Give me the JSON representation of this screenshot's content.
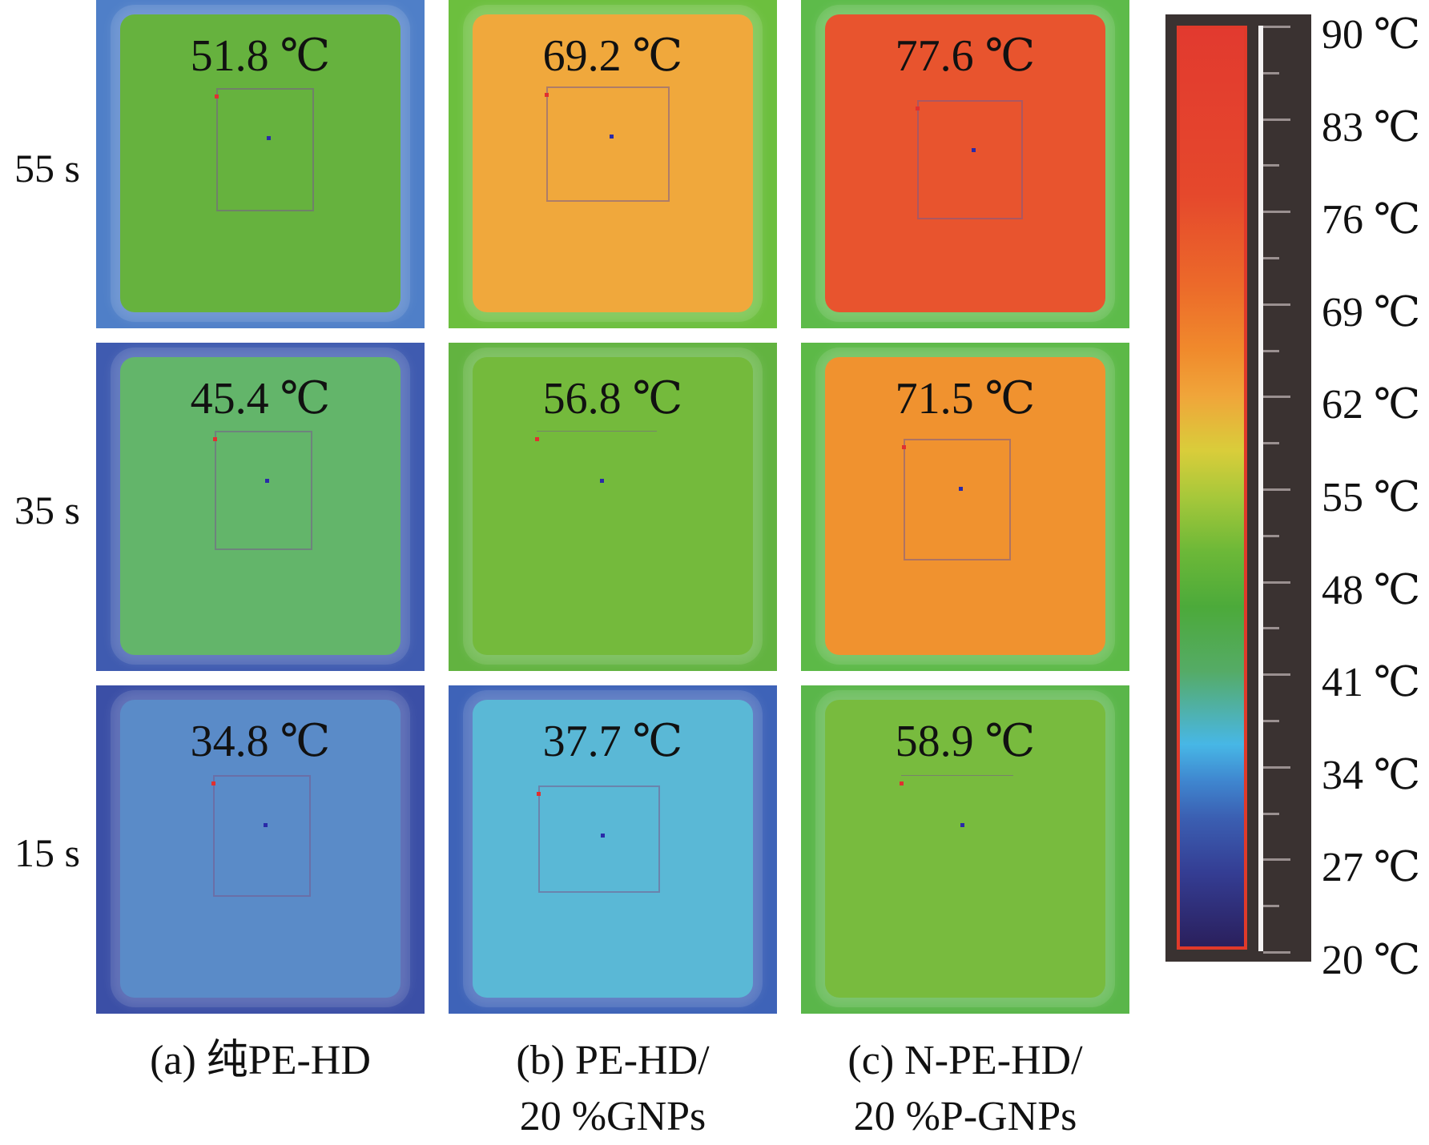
{
  "rows": [
    {
      "label": "55 s"
    },
    {
      "label": "35 s"
    },
    {
      "label": "15 s"
    }
  ],
  "columns": [
    {
      "caption_line1": "(a) 纯PE-HD",
      "caption_line2": ""
    },
    {
      "caption_line1": "(b) PE-HD/",
      "caption_line2": "20 %GNPs"
    },
    {
      "caption_line1": "(c) N-PE-HD/",
      "caption_line2": "20 %P-GNPs"
    }
  ],
  "panels": [
    [
      {
        "temp": "51.8 ℃",
        "bg": "#4f7fc8",
        "plate": "#66b23e"
      },
      {
        "temp": "69.2 ℃",
        "bg": "#6cbf3e",
        "plate": "#f0a83c"
      },
      {
        "temp": "77.6 ℃",
        "bg": "#5dbb4a",
        "plate": "#e8542e"
      }
    ],
    [
      {
        "temp": "45.4 ℃",
        "bg": "#3f5bb0",
        "plate": "#63b56a"
      },
      {
        "temp": "56.8 ℃",
        "bg": "#62b340",
        "plate": "#74ba3c"
      },
      {
        "temp": "71.5 ℃",
        "bg": "#5cb947",
        "plate": "#f0922f"
      }
    ],
    [
      {
        "temp": "34.8 ℃",
        "bg": "#3b4fa6",
        "plate": "#5a8bc8"
      },
      {
        "temp": "37.7 ℃",
        "bg": "#3e63b8",
        "plate": "#5ab8d6"
      },
      {
        "temp": "58.9 ℃",
        "bg": "#5ab64a",
        "plate": "#78bb3e"
      }
    ]
  ],
  "colorbar": {
    "labels": [
      "90 ℃",
      "83 ℃",
      "76 ℃",
      "69 ℃",
      "62 ℃",
      "55 ℃",
      "48 ℃",
      "41 ℃",
      "34 ℃",
      "27 ℃",
      "20 ℃"
    ]
  }
}
